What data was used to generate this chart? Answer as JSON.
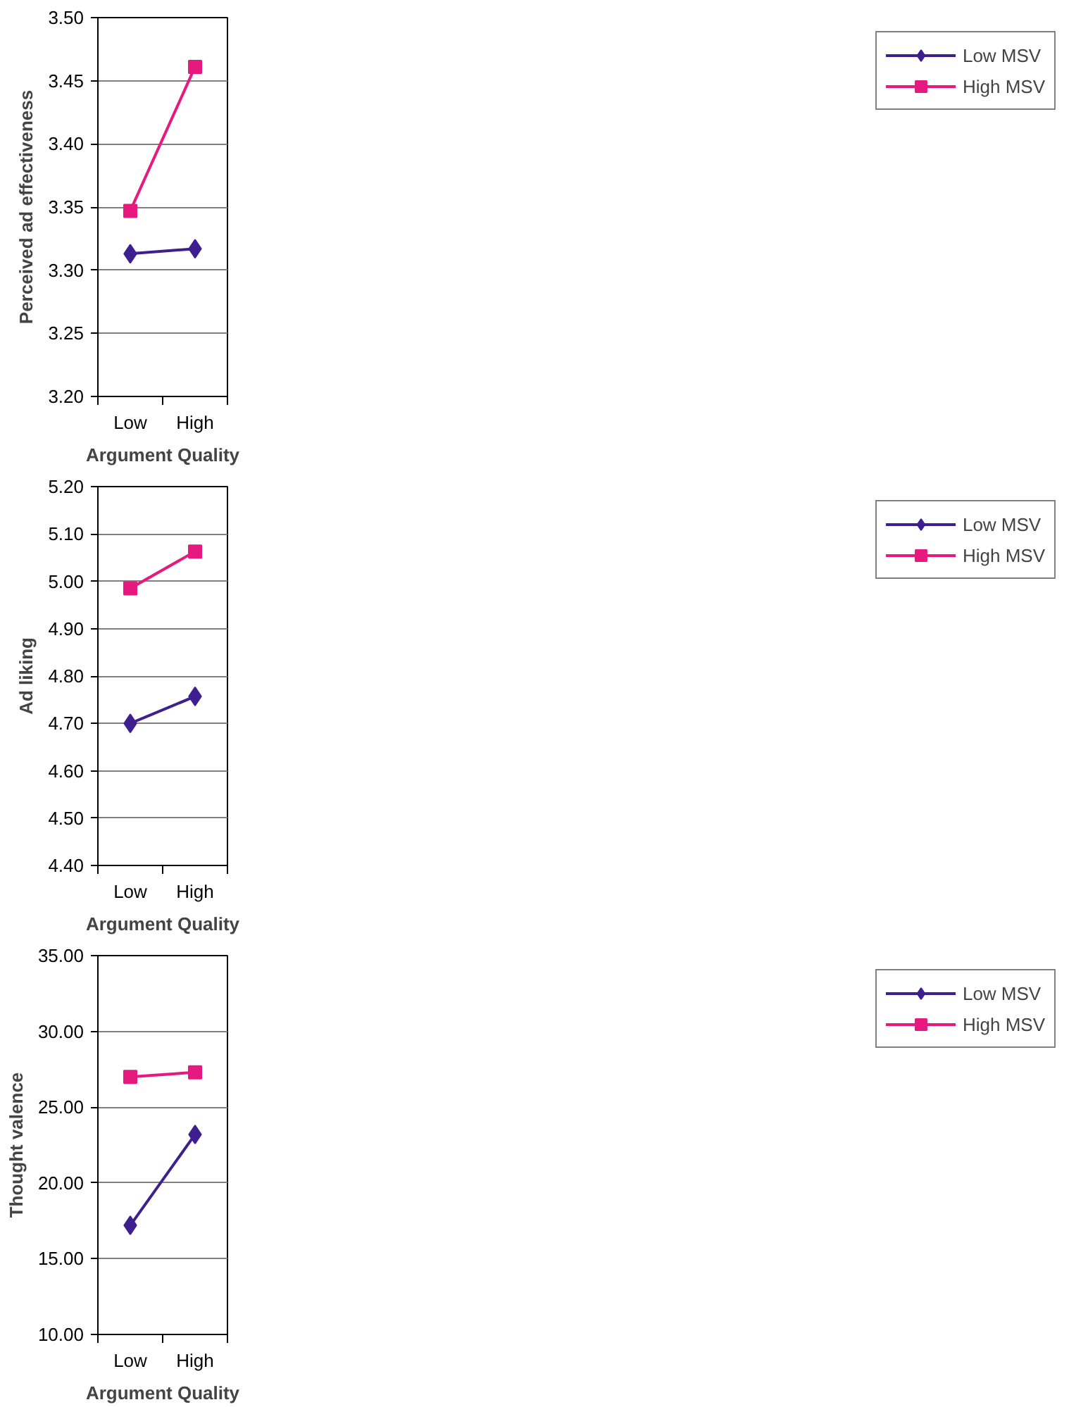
{
  "chart_data": [
    {
      "type": "line",
      "xlabel": "Argument Quality",
      "ylabel": "Perceived ad effectiveness",
      "categories": [
        "Low",
        "High"
      ],
      "ylim": [
        3.2,
        3.5
      ],
      "yticks": [
        {
          "value": 3.2,
          "label": "3.20"
        },
        {
          "value": 3.25,
          "label": "3.25"
        },
        {
          "value": 3.3,
          "label": "3.30"
        },
        {
          "value": 3.35,
          "label": "3.35"
        },
        {
          "value": 3.4,
          "label": "3.40"
        },
        {
          "value": 3.45,
          "label": "3.45"
        },
        {
          "value": 3.5,
          "label": "3.50"
        }
      ],
      "grid": "y",
      "legend": "right",
      "series": [
        {
          "name": "Low MSV",
          "color": "#3f1f8f",
          "marker": "diamond",
          "values": [
            3.313,
            3.317
          ]
        },
        {
          "name": "High MSV",
          "color": "#e6197f",
          "marker": "square",
          "values": [
            3.347,
            3.461
          ]
        }
      ]
    },
    {
      "type": "line",
      "xlabel": "Argument Quality",
      "ylabel": "Ad liking",
      "categories": [
        "Low",
        "High"
      ],
      "ylim": [
        4.4,
        5.2
      ],
      "yticks": [
        {
          "value": 4.4,
          "label": "4.40"
        },
        {
          "value": 4.5,
          "label": "4.50"
        },
        {
          "value": 4.6,
          "label": "4.60"
        },
        {
          "value": 4.7,
          "label": "4.70"
        },
        {
          "value": 4.8,
          "label": "4.80"
        },
        {
          "value": 4.9,
          "label": "4.90"
        },
        {
          "value": 5.0,
          "label": "5.00"
        },
        {
          "value": 5.1,
          "label": "5.10"
        },
        {
          "value": 5.2,
          "label": "5.20"
        }
      ],
      "grid": "y",
      "legend": "right",
      "series": [
        {
          "name": "Low MSV",
          "color": "#3f1f8f",
          "marker": "diamond",
          "values": [
            4.7,
            4.757
          ]
        },
        {
          "name": "High MSV",
          "color": "#e6197f",
          "marker": "square",
          "values": [
            4.985,
            5.063
          ]
        }
      ]
    },
    {
      "type": "line",
      "xlabel": "Argument Quality",
      "ylabel": "Thought valence",
      "categories": [
        "Low",
        "High"
      ],
      "ylim": [
        10,
        35
      ],
      "yticks": [
        {
          "value": 10,
          "label": "10.00"
        },
        {
          "value": 15,
          "label": "15.00"
        },
        {
          "value": 20,
          "label": "20.00"
        },
        {
          "value": 25,
          "label": "25.00"
        },
        {
          "value": 30,
          "label": "30.00"
        },
        {
          "value": 35,
          "label": "35.00"
        }
      ],
      "grid": "y",
      "legend": "right",
      "series": [
        {
          "name": "Low MSV",
          "color": "#3f1f8f",
          "marker": "diamond",
          "values": [
            17.2,
            23.2
          ]
        },
        {
          "name": "High MSV",
          "color": "#e6197f",
          "marker": "square",
          "values": [
            27.0,
            27.3
          ]
        }
      ]
    }
  ]
}
